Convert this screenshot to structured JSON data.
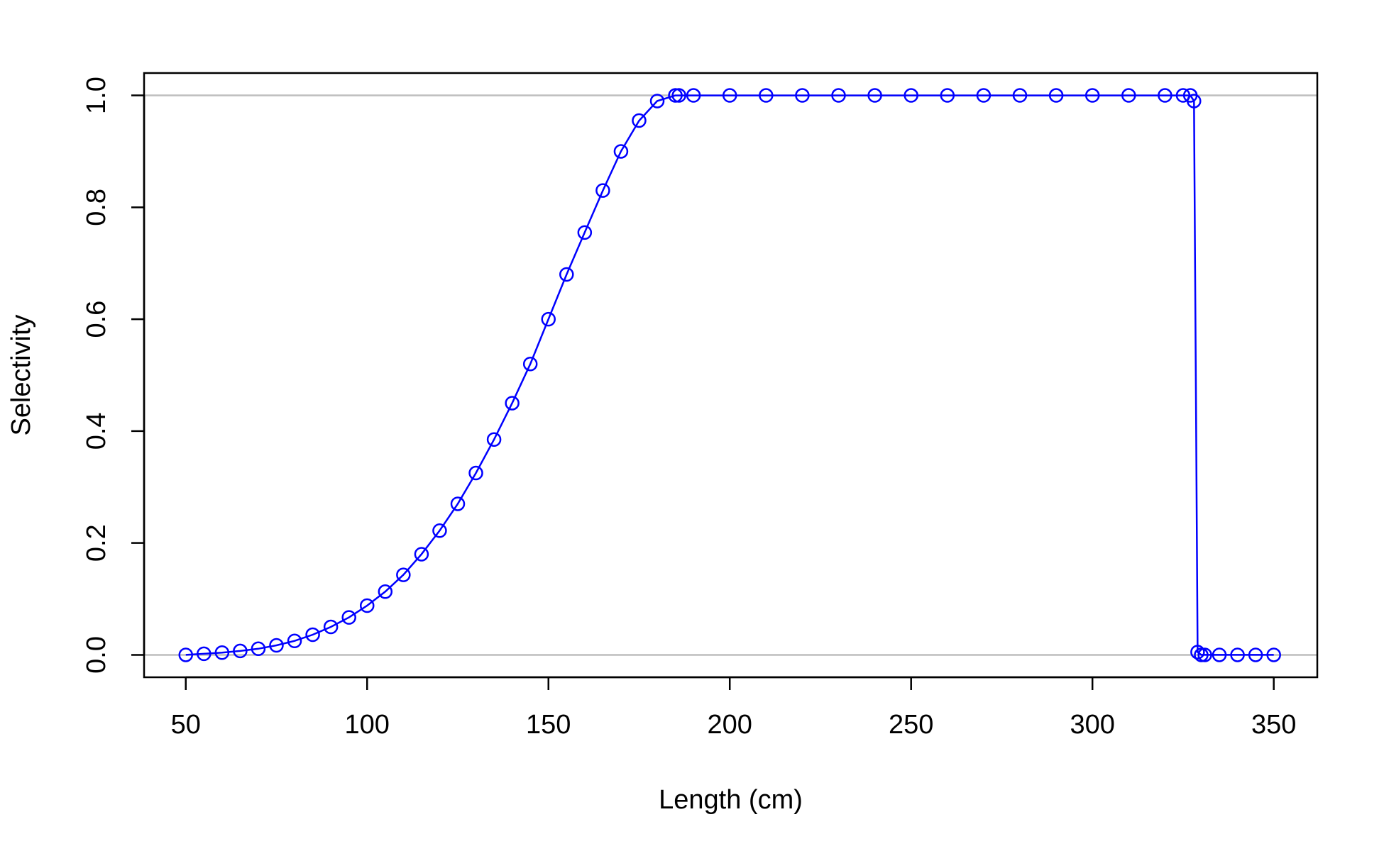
{
  "chart_data": {
    "type": "line",
    "title": "",
    "xlabel": "Length (cm)",
    "ylabel": "Selectivity",
    "xlim": [
      38.5,
      362
    ],
    "ylim": [
      -0.04,
      1.04
    ],
    "x_ticks": [
      50,
      100,
      150,
      200,
      250,
      300,
      350
    ],
    "x_tick_labels": [
      "50",
      "100",
      "150",
      "200",
      "250",
      "300",
      "350"
    ],
    "y_ticks": [
      0.0,
      0.2,
      0.4,
      0.6,
      0.8,
      1.0
    ],
    "y_tick_labels": [
      "0.0",
      "0.2",
      "0.4",
      "0.6",
      "0.8",
      "1.0"
    ],
    "reference_lines_y": [
      0.0,
      1.0
    ],
    "grid": false,
    "marker": "open-circle",
    "series": [
      {
        "color": "#0000ff",
        "x": [
          50,
          55,
          60,
          65,
          70,
          75,
          80,
          85,
          90,
          95,
          100,
          105,
          110,
          115,
          120,
          125,
          130,
          135,
          140,
          145,
          150,
          155,
          160,
          165,
          170,
          175,
          180,
          185,
          186,
          190,
          200,
          210,
          220,
          230,
          240,
          250,
          260,
          270,
          280,
          290,
          300,
          310,
          320,
          325,
          327,
          328,
          329,
          330,
          331,
          335,
          340,
          345,
          350
        ],
        "y": [
          0.0,
          0.002,
          0.004,
          0.007,
          0.011,
          0.017,
          0.025,
          0.036,
          0.05,
          0.067,
          0.088,
          0.113,
          0.143,
          0.18,
          0.222,
          0.27,
          0.325,
          0.385,
          0.45,
          0.52,
          0.6,
          0.68,
          0.755,
          0.83,
          0.9,
          0.955,
          0.99,
          1.0,
          1.0,
          1.0,
          1.0,
          1.0,
          1.0,
          1.0,
          1.0,
          1.0,
          1.0,
          1.0,
          1.0,
          1.0,
          1.0,
          1.0,
          1.0,
          1.0,
          1.0,
          0.99,
          0.005,
          0.0,
          0.0,
          0.0,
          0.0,
          0.0,
          0.0
        ]
      }
    ]
  }
}
